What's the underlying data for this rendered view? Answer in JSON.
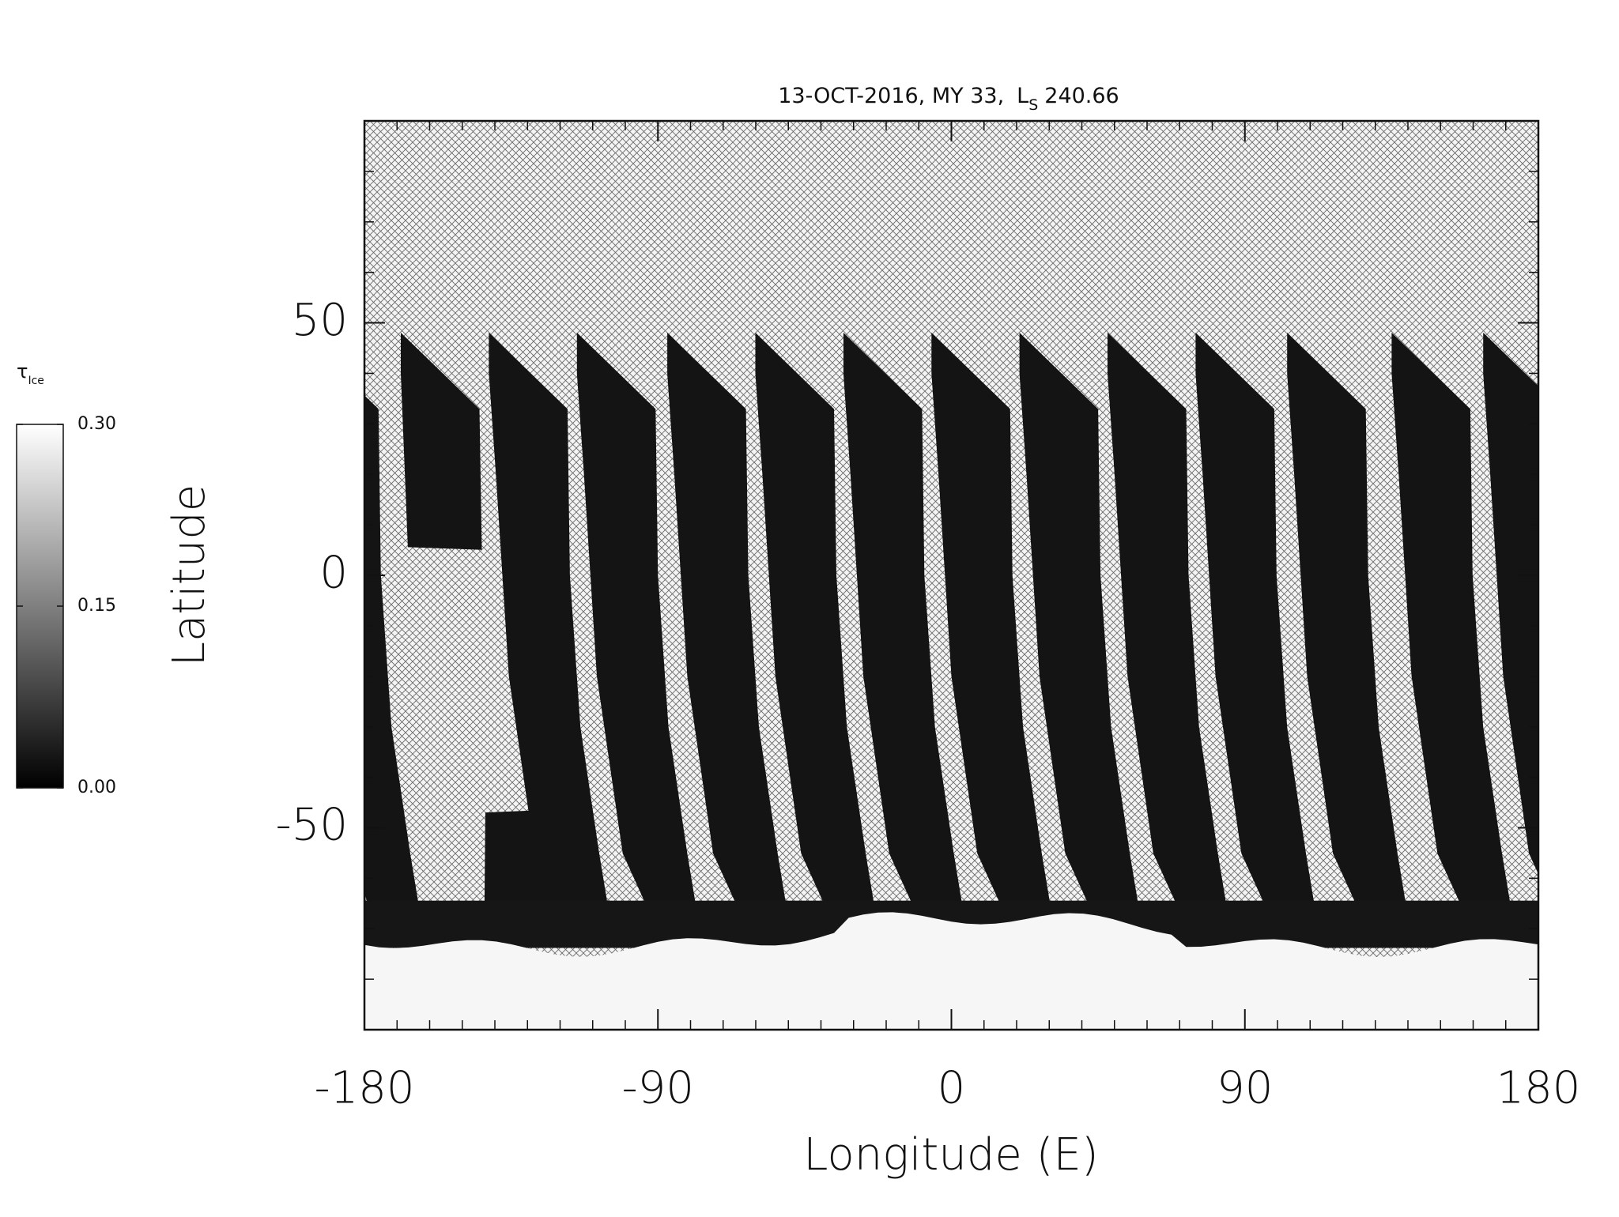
{
  "chart_data": {
    "type": "heatmap",
    "title": "13-OCT-2016, MY 33,",
    "title_symbol": "L",
    "title_subscript": "S",
    "title_value": "240.66",
    "x_label": "Longitude (E)",
    "y_label": "Latitude",
    "xlim": [
      -180,
      180
    ],
    "xticks": [
      -180,
      -90,
      0,
      90,
      180
    ],
    "ylim": [
      -90,
      90
    ],
    "yticks": [
      -50,
      0,
      50
    ],
    "colorbar": {
      "label": "τ",
      "label_subscript": "Ice",
      "lim": [
        0,
        0.3
      ],
      "ticks": [
        {
          "value": 0,
          "label": "0.00"
        },
        {
          "value": 0.15,
          "label": "0.15"
        },
        {
          "value": 0.3,
          "label": "0.30"
        }
      ],
      "colors": [
        "#000000",
        "#ffffff"
      ]
    }
  }
}
